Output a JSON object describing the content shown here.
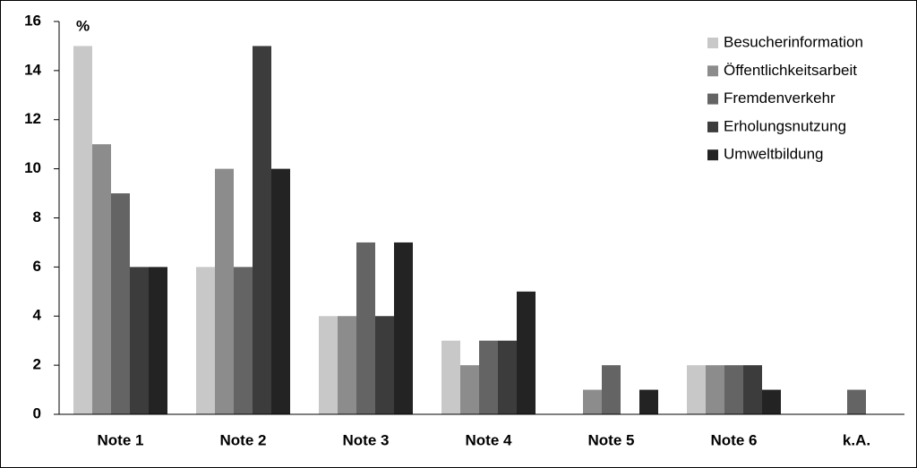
{
  "chart_data": {
    "type": "bar",
    "unit": "%",
    "categories": [
      "Note 1",
      "Note 2",
      "Note 3",
      "Note 4",
      "Note 5",
      "Note 6",
      "k.A."
    ],
    "series": [
      {
        "name": "Besucherinformation",
        "color": "#c8c8c8",
        "values": [
          15,
          6,
          4,
          3,
          0,
          2,
          0
        ]
      },
      {
        "name": "Öffentlichkeitsarbeit",
        "color": "#8c8c8c",
        "values": [
          11,
          10,
          4,
          2,
          1,
          2,
          0
        ]
      },
      {
        "name": "Fremdenverkehr",
        "color": "#646464",
        "values": [
          9,
          6,
          7,
          3,
          2,
          2,
          1
        ]
      },
      {
        "name": "Erholungsnutzung",
        "color": "#3c3c3c",
        "values": [
          6,
          15,
          4,
          3,
          0,
          2,
          0
        ]
      },
      {
        "name": "Umweltbildung",
        "color": "#232323",
        "values": [
          6,
          10,
          7,
          5,
          1,
          1,
          0
        ]
      }
    ],
    "ylim": [
      0,
      16
    ],
    "yticks": [
      0,
      2,
      4,
      6,
      8,
      10,
      12,
      14,
      16
    ],
    "grid": false,
    "legend": "top-right"
  }
}
